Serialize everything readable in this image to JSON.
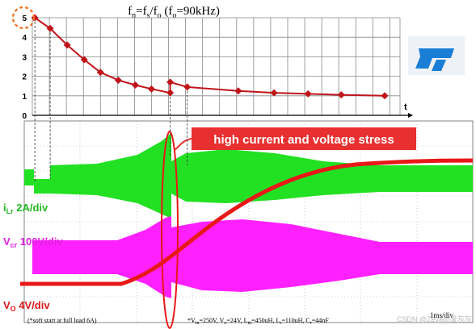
{
  "chart_data": {
    "type": "line",
    "title_parts": [
      "f",
      "n",
      "=f",
      "s",
      "/f",
      "o",
      " (f",
      "o",
      "=90kHz)"
    ],
    "x_label": "t",
    "x": [
      0.15,
      1.05,
      2.05,
      3.05,
      4.0,
      5.05,
      6.05,
      7.0,
      8.1,
      8.1,
      9.1,
      12.1,
      14.2,
      16.2,
      18.15,
      20.7
    ],
    "xlim": [
      0,
      21.6
    ],
    "series": [
      {
        "color": "#c0141a",
        "values": [
          5.0,
          4.45,
          3.6,
          2.85,
          2.2,
          1.8,
          1.55,
          1.35,
          1.15,
          1.7,
          1.45,
          1.25,
          1.15,
          1.1,
          1.05,
          1.0
        ]
      }
    ],
    "ylim": [
      0,
      5
    ],
    "yticks": [
      0,
      1,
      2,
      3,
      4,
      5
    ],
    "grid": true
  },
  "scope": {
    "annotation": "high current and voltage stress",
    "ilr_label": [
      "i",
      "Lr",
      "  2A/div"
    ],
    "vcr_label": [
      "V",
      "cr",
      " 100V/div"
    ],
    "vo_label": [
      "V",
      "O",
      " 4V/div"
    ],
    "time_div": "1ms/div",
    "footnote": "(*soft start at full load 6A)",
    "conditions": [
      "*V",
      "in",
      "=250V, V",
      "o",
      "=24V, L",
      "m",
      "=450uH, L",
      "r",
      "=110uH, C",
      "r",
      "=44nF"
    ],
    "watermark": "CSDN @Zevalin爱灰灰"
  }
}
